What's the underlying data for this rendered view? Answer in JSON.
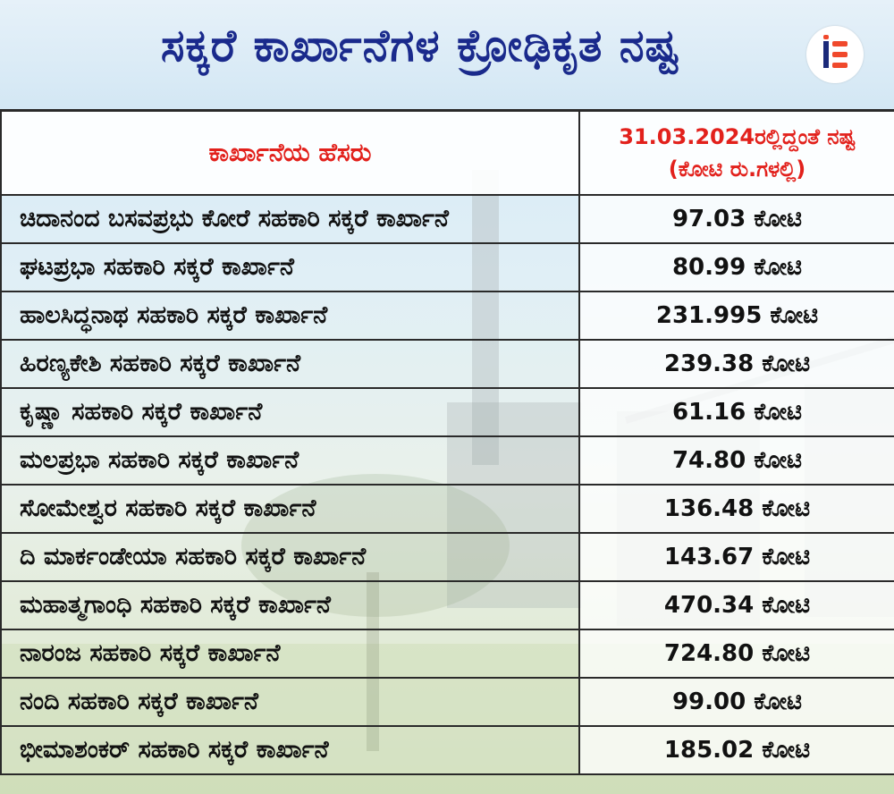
{
  "title": "ಸಕ್ಕರೆ ಕಾರ್ಖಾನೆಗಳ ಕ್ರೋಢಿಕೃತ ನಷ್ಟ",
  "logo": {
    "icon": "ie-logo-icon",
    "colors": {
      "accent": "#f0492c",
      "dark": "#1b2a7a"
    }
  },
  "table": {
    "header": {
      "name": "ಕಾರ್ಖಾನೆಯ ಹೆಸರು",
      "loss_line1": "31.03.2024ರಲ್ಲಿದ್ದಂತೆ ನಷ್ಟ",
      "loss_line2": "(ಕೋಟಿ ರು.ಗಳಲ್ಲಿ)"
    },
    "rows": [
      {
        "name": "ಚಿದಾನಂದ ಬಸವಪ್ರಭು ಕೋರೆ ಸಹಕಾರಿ ಸಕ್ಕರೆ ಕಾರ್ಖಾನೆ",
        "loss": "97.03 ಕೋಟಿ"
      },
      {
        "name": "ಘಟಪ್ರಭಾ ಸಹಕಾರಿ ಸಕ್ಕರೆ ಕಾರ್ಖಾನೆ",
        "loss": "80.99 ಕೋಟಿ"
      },
      {
        "name": "ಹಾಲಸಿದ್ಧನಾಥ ಸಹಕಾರಿ ಸಕ್ಕರೆ ಕಾರ್ಖಾನೆ",
        "loss": "231.995 ಕೋಟಿ"
      },
      {
        "name": "ಹಿರಣ್ಯಕೇಶಿ ಸಹಕಾರಿ ಸಕ್ಕರೆ ಕಾರ್ಖಾನೆ",
        "loss": "239.38 ಕೋಟಿ"
      },
      {
        "name": "ಕೃಷ್ಣಾ ಸಹಕಾರಿ ಸಕ್ಕರೆ ಕಾರ್ಖಾನೆ",
        "loss": "61.16 ಕೋಟಿ"
      },
      {
        "name": "ಮಲಪ್ರಭಾ ಸಹಕಾರಿ ಸಕ್ಕರೆ ಕಾರ್ಖಾನೆ",
        "loss": "74.80 ಕೋಟಿ"
      },
      {
        "name": "ಸೋಮೇಶ್ವರ ಸಹಕಾರಿ ಸಕ್ಕರೆ ಕಾರ್ಖಾನೆ",
        "loss": "136.48 ಕೋಟಿ"
      },
      {
        "name": "ದಿ ಮಾರ್ಕಂಡೇಯಾ ಸಹಕಾರಿ ಸಕ್ಕರೆ ಕಾರ್ಖಾನೆ",
        "loss": "143.67 ಕೋಟಿ"
      },
      {
        "name": "ಮಹಾತ್ಮಗಾಂಧಿ ಸಹಕಾರಿ ಸಕ್ಕರೆ ಕಾರ್ಖಾನೆ",
        "loss": "470.34 ಕೋಟಿ"
      },
      {
        "name": "ನಾರಂಜ ಸಹಕಾರಿ ಸಕ್ಕರೆ ಕಾರ್ಖಾನೆ",
        "loss": "724.80 ಕೋಟಿ"
      },
      {
        "name": "ನಂದಿ ಸಹಕಾರಿ ಸಕ್ಕರೆ ಕಾರ್ಖಾನೆ",
        "loss": "99.00 ಕೋಟಿ"
      },
      {
        "name": "ಭೀಮಾಶಂಕರ್ ಸಹಕಾರಿ ಸಕ್ಕರೆ ಕಾರ್ಖಾನೆ",
        "loss": "185.02 ಕೋಟಿ"
      }
    ]
  }
}
